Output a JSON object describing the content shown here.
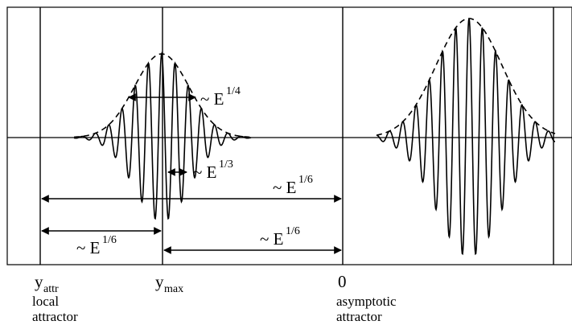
{
  "annotations": {
    "width_envelope": {
      "prefix": "~ E",
      "exp": "1/4"
    },
    "wavelength": {
      "prefix": "~ E",
      "exp": "1/3"
    },
    "attr_to_zero": {
      "prefix": "~ E",
      "exp": "1/6"
    },
    "attr_to_max": {
      "prefix": "~ E",
      "exp": "1/6"
    },
    "max_to_zero": {
      "prefix": "~ E",
      "exp": "1/6"
    }
  },
  "axis_labels": {
    "y_attr": {
      "main": "y",
      "sub": "attr",
      "caption1": "local",
      "caption2": "attractor"
    },
    "y_max": {
      "main": "y",
      "sub": "max"
    },
    "zero": {
      "main": "0",
      "caption1": "asymptotic",
      "caption2": "attractor"
    }
  }
}
